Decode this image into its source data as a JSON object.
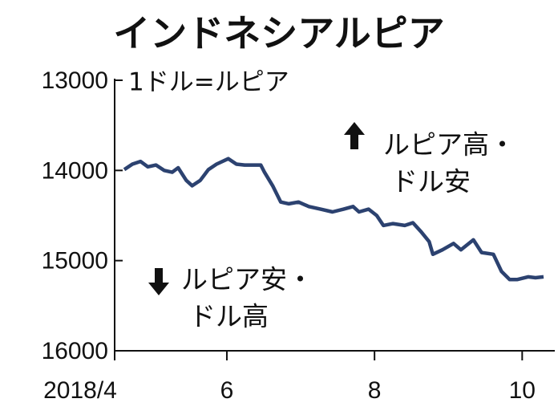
{
  "chart_data": {
    "type": "line",
    "title": "インドネシアルピア",
    "y_label": "1ドル=ルピア",
    "annotations": [
      {
        "lines": [
          "ルピア高・",
          "ドル安"
        ],
        "arrow": "up"
      },
      {
        "lines": [
          "ルピア安・",
          "ドル高"
        ],
        "arrow": "down"
      }
    ],
    "xlim": [
      4.48,
      10.42
    ],
    "xticks": [
      {
        "value": 4,
        "label": "2018/4"
      },
      6,
      8,
      10
    ],
    "ylim": [
      13000,
      16000
    ],
    "y_inverted": true,
    "yticks": [
      13000,
      14000,
      15000,
      16000
    ],
    "x": [
      4.61,
      4.72,
      4.83,
      4.93,
      5.04,
      5.15,
      5.26,
      5.34,
      5.45,
      5.53,
      5.64,
      5.75,
      5.86,
      6.02,
      6.13,
      6.24,
      6.46,
      6.51,
      6.62,
      6.73,
      6.84,
      6.97,
      7.11,
      7.27,
      7.43,
      7.58,
      7.71,
      7.79,
      7.92,
      8.03,
      8.12,
      8.25,
      8.41,
      8.52,
      8.63,
      8.74,
      8.79,
      8.92,
      9.07,
      9.17,
      9.34,
      9.45,
      9.61,
      9.72,
      9.83,
      9.93,
      10.08,
      10.18,
      10.29
    ],
    "series": [
      {
        "color": "#2c4270",
        "values": [
          13990,
          13930,
          13900,
          13960,
          13940,
          14000,
          14020,
          13970,
          14110,
          14170,
          14110,
          13990,
          13930,
          13870,
          13930,
          13940,
          13940,
          14020,
          14170,
          14350,
          14370,
          14350,
          14400,
          14430,
          14460,
          14430,
          14400,
          14460,
          14430,
          14500,
          14610,
          14590,
          14610,
          14580,
          14680,
          14790,
          14930,
          14880,
          14810,
          14880,
          14770,
          14910,
          14930,
          15120,
          15210,
          15210,
          15180,
          15190,
          15180
        ]
      }
    ]
  }
}
